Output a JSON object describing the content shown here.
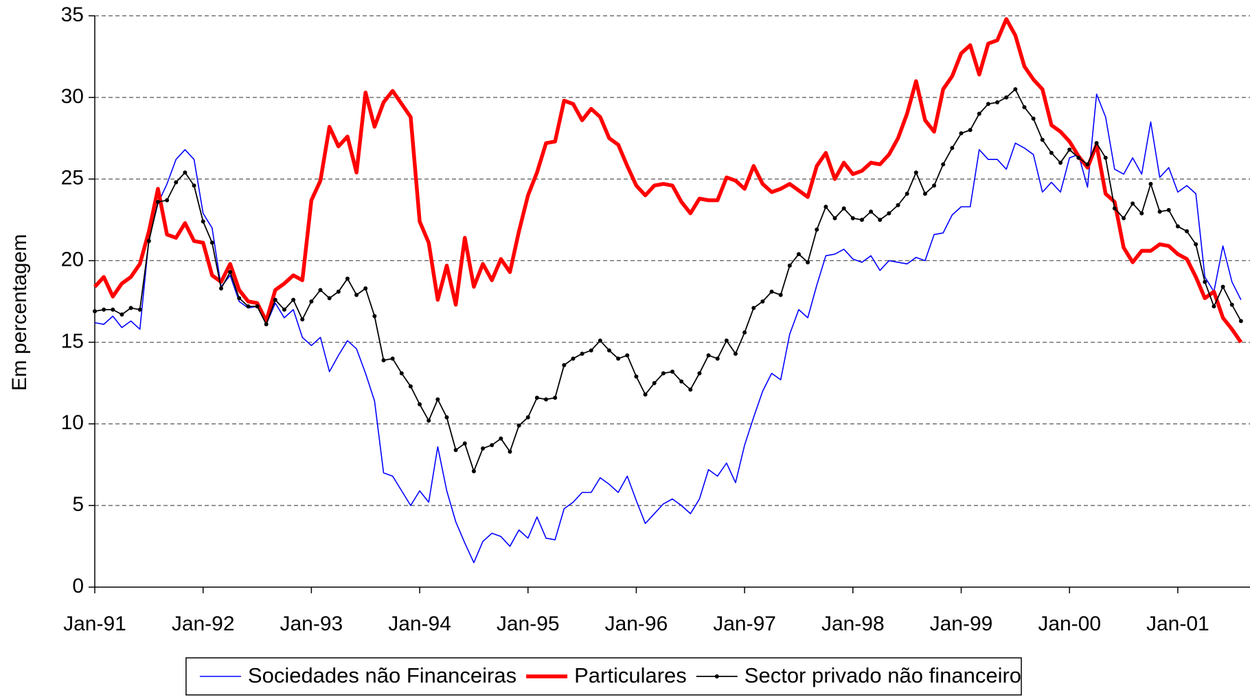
{
  "chart_data": {
    "type": "line",
    "y_label": "Em percentagem",
    "categories": [
      "Jan-91",
      null,
      null,
      null,
      null,
      null,
      null,
      null,
      null,
      null,
      null,
      null,
      "Jan-92",
      null,
      null,
      null,
      null,
      null,
      null,
      null,
      null,
      null,
      null,
      null,
      "Jan-93",
      null,
      null,
      null,
      null,
      null,
      null,
      null,
      null,
      null,
      null,
      null,
      "Jan-94",
      null,
      null,
      null,
      null,
      null,
      null,
      null,
      null,
      null,
      null,
      null,
      "Jan-95",
      null,
      null,
      null,
      null,
      null,
      null,
      null,
      null,
      null,
      null,
      null,
      "Jan-96",
      null,
      null,
      null,
      null,
      null,
      null,
      null,
      null,
      null,
      null,
      null,
      "Jan-97",
      null,
      null,
      null,
      null,
      null,
      null,
      null,
      null,
      null,
      null,
      null,
      "Jan-98",
      null,
      null,
      null,
      null,
      null,
      null,
      null,
      null,
      null,
      null,
      null,
      "Jan-99",
      null,
      null,
      null,
      null,
      null,
      null,
      null,
      null,
      null,
      null,
      null,
      "Jan-00",
      null,
      null,
      null,
      null,
      null,
      null,
      null,
      null,
      null,
      null,
      null,
      "Jan-01",
      null,
      null,
      null,
      null,
      null,
      null,
      null
    ],
    "series": [
      {
        "name": "Sociedades não Financeiras",
        "color": "#0000ff",
        "marker": false,
        "values": [
          16.2,
          16.1,
          16.6,
          15.9,
          16.3,
          15.8,
          21.3,
          23.5,
          24.7,
          26.2,
          26.8,
          26.2,
          22.9,
          22.0,
          18.4,
          19.1,
          17.5,
          17.1,
          17.2,
          16.1,
          17.4,
          16.5,
          17.0,
          15.3,
          14.8,
          15.3,
          13.2,
          14.2,
          15.1,
          14.6,
          13.1,
          11.4,
          7.0,
          6.8,
          5.9,
          5.0,
          5.9,
          5.2,
          8.6,
          5.9,
          4.0,
          2.7,
          1.5,
          2.8,
          3.3,
          3.1,
          2.5,
          3.5,
          3.0,
          4.3,
          3.0,
          2.9,
          4.8,
          5.2,
          5.8,
          5.8,
          6.7,
          6.3,
          5.8,
          6.8,
          5.3,
          3.9,
          4.5,
          5.1,
          5.4,
          5.0,
          4.5,
          5.4,
          7.2,
          6.8,
          7.6,
          6.4,
          8.7,
          10.4,
          12.0,
          13.1,
          12.7,
          15.5,
          17.0,
          16.5,
          18.5,
          20.3,
          20.4,
          20.7,
          20.1,
          19.9,
          20.3,
          19.4,
          20.0,
          19.9,
          19.8,
          20.2,
          20.0,
          21.6,
          21.7,
          22.8,
          23.3,
          23.3,
          26.8,
          26.2,
          26.2,
          25.6,
          27.2,
          26.9,
          26.5,
          24.2,
          24.8,
          24.2,
          26.3,
          26.5,
          24.5,
          30.2,
          28.8,
          25.6,
          25.3,
          26.3,
          25.3,
          28.5,
          25.1,
          25.7,
          24.2,
          24.6,
          24.1,
          19.0,
          18.1,
          20.9,
          18.7,
          17.6
        ]
      },
      {
        "name": "Particulares",
        "color": "#ff0000",
        "marker": false,
        "values": [
          18.4,
          19.0,
          17.8,
          18.6,
          19.0,
          19.8,
          21.8,
          24.4,
          21.6,
          21.4,
          22.3,
          21.2,
          21.1,
          19.1,
          18.7,
          19.8,
          18.2,
          17.5,
          17.4,
          16.3,
          18.2,
          18.6,
          19.1,
          18.8,
          23.7,
          24.9,
          28.2,
          27.0,
          27.6,
          25.4,
          30.3,
          28.2,
          29.7,
          30.4,
          29.6,
          28.8,
          22.4,
          21.1,
          17.6,
          19.7,
          17.3,
          21.4,
          18.4,
          19.8,
          18.8,
          20.1,
          19.3,
          21.8,
          24.0,
          25.4,
          27.2,
          27.3,
          29.8,
          29.6,
          28.6,
          29.3,
          28.8,
          27.5,
          27.1,
          25.8,
          24.6,
          24.0,
          24.6,
          24.7,
          24.6,
          23.6,
          22.9,
          23.8,
          23.7,
          23.7,
          25.1,
          24.9,
          24.4,
          25.8,
          24.7,
          24.2,
          24.4,
          24.7,
          24.3,
          23.9,
          25.8,
          26.6,
          25.0,
          26.0,
          25.3,
          25.5,
          26.0,
          25.9,
          26.5,
          27.5,
          29.0,
          31.0,
          28.6,
          27.9,
          30.5,
          31.3,
          32.7,
          33.2,
          31.4,
          33.3,
          33.5,
          34.8,
          33.8,
          31.9,
          31.1,
          30.5,
          28.3,
          27.9,
          27.3,
          26.4,
          25.7,
          27.1,
          24.1,
          23.6,
          20.8,
          19.9,
          20.6,
          20.6,
          21.0,
          20.9,
          20.4,
          20.1,
          19.0,
          17.7,
          18.1,
          16.5,
          15.8,
          15.0
        ]
      },
      {
        "name": "Sector privado não financeiro",
        "color": "#000000",
        "marker": true,
        "values": [
          16.9,
          17.0,
          17.0,
          16.7,
          17.1,
          17.0,
          21.2,
          23.6,
          23.7,
          24.8,
          25.4,
          24.6,
          22.4,
          21.1,
          18.3,
          19.3,
          17.7,
          17.2,
          17.2,
          16.1,
          17.6,
          17.0,
          17.6,
          16.4,
          17.5,
          18.2,
          17.7,
          18.1,
          18.9,
          17.9,
          18.3,
          16.6,
          13.9,
          14.0,
          13.1,
          12.3,
          11.2,
          10.2,
          11.5,
          10.4,
          8.4,
          8.8,
          7.1,
          8.5,
          8.7,
          9.1,
          8.3,
          9.9,
          10.4,
          11.6,
          11.5,
          11.6,
          13.6,
          14.0,
          14.3,
          14.5,
          15.1,
          14.5,
          14.0,
          14.2,
          12.9,
          11.8,
          12.5,
          13.1,
          13.2,
          12.6,
          12.1,
          13.1,
          14.2,
          14.0,
          15.1,
          14.3,
          15.6,
          17.1,
          17.5,
          18.1,
          17.9,
          19.7,
          20.4,
          19.9,
          21.9,
          23.3,
          22.6,
          23.2,
          22.6,
          22.5,
          23.0,
          22.5,
          22.9,
          23.4,
          24.1,
          25.4,
          24.1,
          24.6,
          25.9,
          26.9,
          27.8,
          28.0,
          29.0,
          29.6,
          29.7,
          30.0,
          30.5,
          29.4,
          28.7,
          27.4,
          26.6,
          26.0,
          26.8,
          26.3,
          25.9,
          27.2,
          26.3,
          23.2,
          22.6,
          23.5,
          22.9,
          24.7,
          23.0,
          23.1,
          22.1,
          21.8,
          21.0,
          18.7,
          17.2,
          18.4,
          17.3,
          16.3
        ]
      }
    ],
    "ylim": [
      0,
      35
    ],
    "yticks": [
      0,
      5,
      10,
      15,
      20,
      25,
      30,
      35
    ],
    "grid": true,
    "legend": "bottom"
  }
}
